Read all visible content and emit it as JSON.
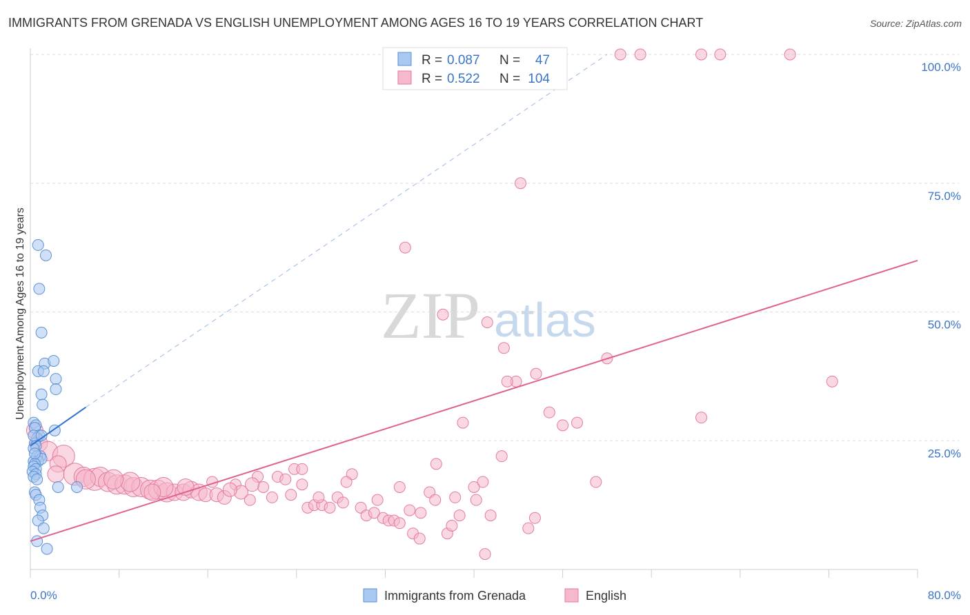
{
  "chart_data": {
    "type": "scatter",
    "title": "IMMIGRANTS FROM GRENADA VS ENGLISH UNEMPLOYMENT AMONG AGES 16 TO 19 YEARS CORRELATION CHART",
    "source": "Source: ZipAtlas.com",
    "ylabel": "Unemployment Among Ages 16 to 19 years",
    "xlabel": "",
    "xlim": [
      0,
      80
    ],
    "ylim": [
      0,
      100
    ],
    "x_tick_labels": [
      "0.0%",
      "80.0%"
    ],
    "y_tick_labels": [
      "100.0%",
      "75.0%",
      "50.0%",
      "25.0%"
    ],
    "y_tick_values": [
      100,
      75,
      50,
      25
    ],
    "watermark": {
      "zip": "ZIP",
      "atlas": "atlas"
    },
    "legend": {
      "rows": [
        {
          "r_label": "R =",
          "r_value": "0.087",
          "n_label": "N =",
          "n_value": "47"
        },
        {
          "r_label": "R =",
          "r_value": "0.522",
          "n_label": "N =",
          "n_value": "104"
        }
      ]
    },
    "colors": {
      "blue_fill": "#a9c8f0",
      "blue_stroke": "#5b8fd6",
      "blue_line": "#2f6fd0",
      "pink_fill": "#f6b8cb",
      "pink_stroke": "#e27ba0",
      "pink_line": "#e06090",
      "value_text": "#3a74c7",
      "grid": "#dddddd"
    },
    "series": [
      {
        "name": "Immigrants from Grenada",
        "trend": {
          "x1": 0.0,
          "y1": 24.0,
          "x2": 5.0,
          "y2": 31.5,
          "dash_to_x": 52.0,
          "dash_to_y": 100.0
        },
        "points": [
          [
            0.7,
            63.0
          ],
          [
            1.4,
            61.0
          ],
          [
            0.8,
            54.5
          ],
          [
            1.0,
            46.0
          ],
          [
            1.3,
            40.0
          ],
          [
            2.1,
            40.5
          ],
          [
            0.7,
            38.5
          ],
          [
            1.2,
            38.5
          ],
          [
            2.3,
            37.0
          ],
          [
            2.3,
            35.0
          ],
          [
            1.0,
            34.0
          ],
          [
            1.1,
            32.0
          ],
          [
            0.3,
            28.5
          ],
          [
            0.5,
            28.0
          ],
          [
            0.4,
            27.5
          ],
          [
            2.2,
            27.0
          ],
          [
            0.8,
            26.0
          ],
          [
            0.6,
            25.5
          ],
          [
            0.4,
            24.5
          ],
          [
            0.5,
            24.0
          ],
          [
            0.3,
            23.5
          ],
          [
            0.9,
            22.0
          ],
          [
            0.6,
            22.0
          ],
          [
            0.3,
            21.0
          ],
          [
            0.7,
            21.0
          ],
          [
            1.0,
            21.5
          ],
          [
            0.4,
            20.5
          ],
          [
            0.3,
            20.0
          ],
          [
            0.5,
            19.5
          ],
          [
            0.2,
            19.0
          ],
          [
            0.5,
            18.5
          ],
          [
            0.3,
            18.0
          ],
          [
            0.6,
            17.5
          ],
          [
            0.4,
            15.0
          ],
          [
            0.5,
            14.5
          ],
          [
            2.5,
            16.0
          ],
          [
            4.2,
            16.0
          ],
          [
            0.8,
            13.5
          ],
          [
            0.9,
            12.0
          ],
          [
            1.1,
            10.5
          ],
          [
            0.7,
            9.5
          ],
          [
            1.2,
            8.0
          ],
          [
            0.6,
            5.5
          ],
          [
            1.5,
            4.0
          ],
          [
            0.3,
            26.0
          ],
          [
            1.0,
            26.0
          ],
          [
            0.4,
            22.5
          ]
        ],
        "sizes": [
          8,
          8,
          8,
          8,
          8,
          8,
          8,
          8,
          8,
          8,
          8,
          8,
          8,
          8,
          8,
          8,
          8,
          8,
          8,
          8,
          8,
          8,
          8,
          8,
          8,
          8,
          8,
          8,
          8,
          8,
          8,
          8,
          8,
          8,
          8,
          8,
          8,
          8,
          8,
          8,
          8,
          8,
          8,
          8,
          8,
          8,
          8
        ]
      },
      {
        "name": "English",
        "trend": {
          "x1": 0.0,
          "y1": 5.5,
          "x2": 80.0,
          "y2": 60.0
        },
        "points": [
          [
            53.2,
            100.0
          ],
          [
            55.0,
            100.0
          ],
          [
            60.5,
            100.0
          ],
          [
            62.2,
            100.0
          ],
          [
            68.5,
            100.0
          ],
          [
            44.2,
            75.0
          ],
          [
            33.8,
            62.5
          ],
          [
            37.2,
            49.5
          ],
          [
            41.2,
            48.0
          ],
          [
            42.7,
            43.0
          ],
          [
            52.0,
            41.0
          ],
          [
            45.6,
            38.0
          ],
          [
            43.8,
            36.5
          ],
          [
            43.0,
            36.5
          ],
          [
            72.3,
            36.5
          ],
          [
            46.8,
            30.5
          ],
          [
            60.5,
            29.5
          ],
          [
            39.0,
            28.5
          ],
          [
            49.3,
            28.5
          ],
          [
            48.0,
            28.0
          ],
          [
            0.4,
            27.0
          ],
          [
            0.8,
            24.5
          ],
          [
            1.6,
            23.0
          ],
          [
            3.0,
            22.0
          ],
          [
            2.5,
            20.5
          ],
          [
            42.5,
            22.0
          ],
          [
            36.6,
            20.5
          ],
          [
            23.8,
            19.5
          ],
          [
            24.5,
            19.5
          ],
          [
            29.0,
            18.5
          ],
          [
            20.5,
            18.0
          ],
          [
            22.3,
            18.0
          ],
          [
            23.0,
            17.5
          ],
          [
            28.5,
            17.0
          ],
          [
            40.8,
            17.0
          ],
          [
            51.0,
            17.0
          ],
          [
            16.4,
            17.0
          ],
          [
            18.5,
            16.5
          ],
          [
            21.0,
            16.0
          ],
          [
            33.3,
            16.0
          ],
          [
            40.0,
            16.0
          ],
          [
            2.3,
            18.5
          ],
          [
            4.0,
            18.5
          ],
          [
            4.8,
            18.0
          ],
          [
            5.8,
            17.5
          ],
          [
            6.3,
            18.0
          ],
          [
            7.0,
            17.0
          ],
          [
            7.8,
            16.5
          ],
          [
            8.5,
            16.5
          ],
          [
            9.3,
            16.0
          ],
          [
            10.0,
            16.0
          ],
          [
            10.8,
            15.5
          ],
          [
            11.5,
            15.5
          ],
          [
            12.3,
            15.0
          ],
          [
            13.0,
            15.0
          ],
          [
            13.8,
            15.0
          ],
          [
            14.5,
            15.5
          ],
          [
            15.2,
            15.0
          ],
          [
            15.8,
            14.5
          ],
          [
            16.8,
            14.5
          ],
          [
            17.5,
            14.0
          ],
          [
            19.0,
            15.0
          ],
          [
            19.8,
            13.5
          ],
          [
            21.8,
            14.0
          ],
          [
            23.5,
            14.5
          ],
          [
            25.0,
            12.0
          ],
          [
            25.6,
            12.5
          ],
          [
            26.3,
            12.5
          ],
          [
            27.0,
            12.0
          ],
          [
            27.7,
            14.0
          ],
          [
            28.2,
            13.0
          ],
          [
            29.8,
            12.0
          ],
          [
            30.3,
            10.5
          ],
          [
            31.0,
            11.0
          ],
          [
            31.3,
            13.5
          ],
          [
            31.8,
            10.0
          ],
          [
            32.3,
            9.5
          ],
          [
            32.8,
            9.5
          ],
          [
            33.3,
            9.0
          ],
          [
            34.2,
            11.5
          ],
          [
            35.2,
            11.0
          ],
          [
            36.0,
            15.0
          ],
          [
            36.5,
            13.5
          ],
          [
            38.7,
            10.5
          ],
          [
            38.3,
            14.0
          ],
          [
            34.5,
            7.0
          ],
          [
            35.1,
            6.0
          ],
          [
            37.6,
            7.0
          ],
          [
            38.0,
            8.5
          ],
          [
            41.5,
            10.5
          ],
          [
            40.2,
            13.5
          ],
          [
            44.9,
            8.0
          ],
          [
            45.5,
            10.0
          ],
          [
            41.0,
            3.0
          ],
          [
            12.0,
            16.0
          ],
          [
            9.0,
            17.0
          ],
          [
            7.5,
            17.5
          ],
          [
            5.0,
            17.5
          ],
          [
            11.0,
            15.0
          ],
          [
            14.0,
            16.0
          ],
          [
            18.0,
            15.5
          ],
          [
            20.0,
            16.5
          ],
          [
            26.0,
            14.0
          ],
          [
            24.5,
            16.5
          ]
        ],
        "sizes": [
          8,
          8,
          8,
          8,
          8,
          8,
          8,
          8,
          8,
          8,
          8,
          8,
          8,
          8,
          8,
          8,
          8,
          8,
          8,
          8,
          12,
          12,
          14,
          16,
          12,
          8,
          8,
          8,
          8,
          8,
          8,
          8,
          8,
          8,
          8,
          8,
          8,
          8,
          8,
          8,
          8,
          12,
          16,
          14,
          16,
          14,
          14,
          14,
          14,
          14,
          14,
          14,
          14,
          14,
          12,
          12,
          12,
          12,
          10,
          10,
          10,
          10,
          8,
          8,
          8,
          8,
          8,
          8,
          8,
          8,
          8,
          8,
          8,
          8,
          8,
          8,
          8,
          8,
          8,
          8,
          8,
          8,
          8,
          8,
          8,
          8,
          8,
          8,
          8,
          8,
          8,
          8,
          8,
          8,
          14,
          14,
          14,
          14,
          12,
          12,
          10,
          10,
          8,
          8
        ]
      }
    ]
  },
  "bottom_legend": {
    "items": [
      "Immigrants from Grenada",
      "English"
    ]
  }
}
